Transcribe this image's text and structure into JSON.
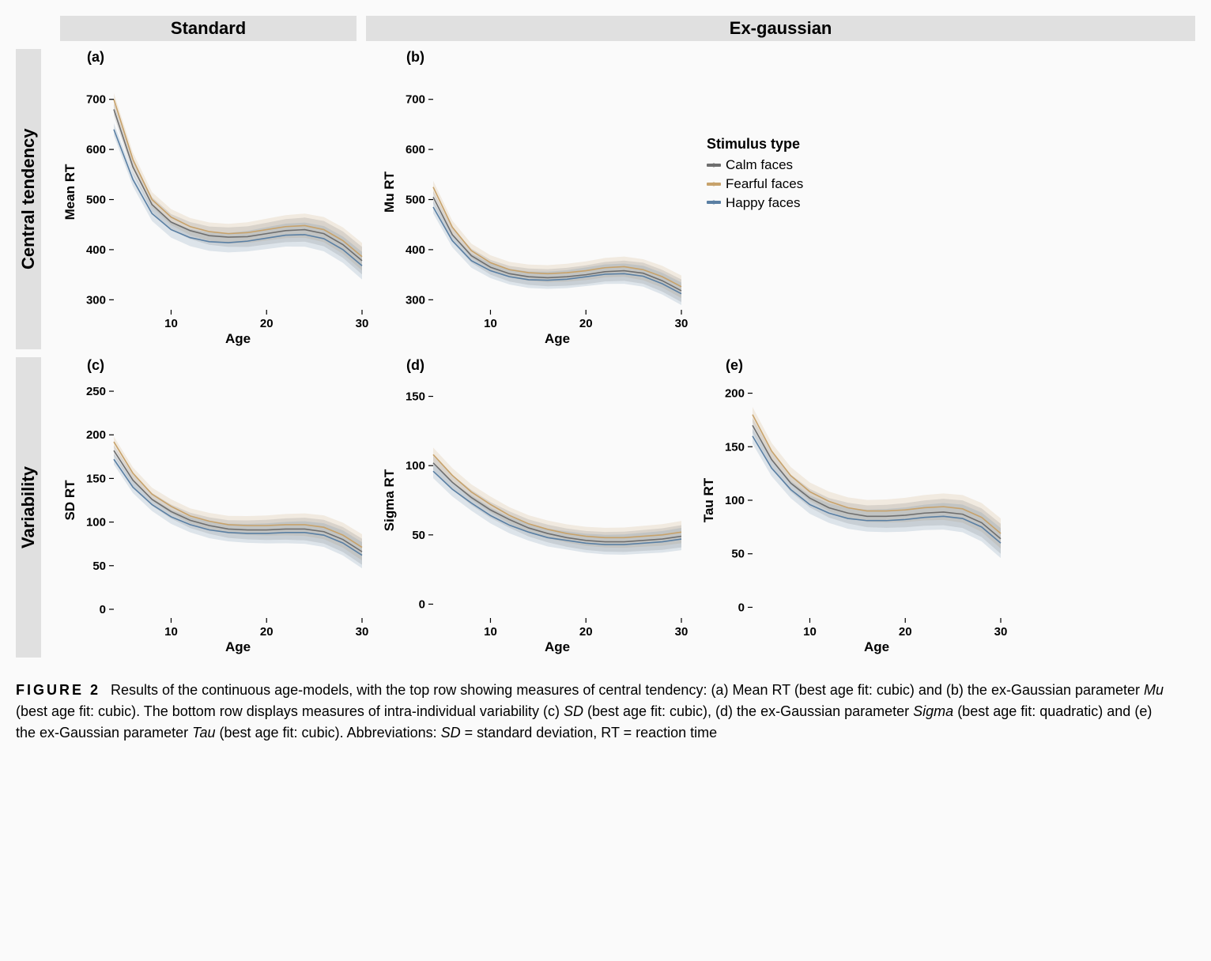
{
  "colors": {
    "calm": "#6e6e6e",
    "fearful": "#c7a26b",
    "happy": "#5a7fa3",
    "ribbon_alpha": 0.18,
    "bg": "#fafafa",
    "header_bg": "#e0e0e0",
    "axis": "#000000"
  },
  "legend": {
    "title": "Stimulus type",
    "items": [
      {
        "key": "calm",
        "label": "Calm faces"
      },
      {
        "key": "fearful",
        "label": "Fearful faces"
      },
      {
        "key": "happy",
        "label": "Happy faces"
      }
    ]
  },
  "column_headers": {
    "standard": "Standard",
    "exgaussian": "Ex-gaussian"
  },
  "row_headers": {
    "central": "Central tendency",
    "variability": "Variability"
  },
  "layout": {
    "top_panel_w": 392,
    "top_panel_h": 380,
    "bottom_panel_w": 392,
    "bottom_panel_h": 380,
    "legend_panel_w": 300,
    "margins": {
      "l": 68,
      "r": 10,
      "t": 32,
      "b": 50
    }
  },
  "x_axis": {
    "label": "Age",
    "min": 4,
    "max": 30,
    "ticks": [
      10,
      20,
      30
    ]
  },
  "panels": {
    "a": {
      "tag": "(a)",
      "ylabel": "Mean RT",
      "ymin": 280,
      "ymax": 750,
      "yticks": [
        300,
        400,
        500,
        600,
        700
      ],
      "series": {
        "calm": [
          [
            4,
            680
          ],
          [
            6,
            565
          ],
          [
            8,
            490
          ],
          [
            10,
            455
          ],
          [
            12,
            438
          ],
          [
            14,
            428
          ],
          [
            16,
            425
          ],
          [
            18,
            426
          ],
          [
            20,
            432
          ],
          [
            22,
            438
          ],
          [
            24,
            440
          ],
          [
            26,
            432
          ],
          [
            28,
            410
          ],
          [
            30,
            378
          ]
        ],
        "fearful": [
          [
            4,
            700
          ],
          [
            6,
            580
          ],
          [
            8,
            500
          ],
          [
            10,
            465
          ],
          [
            12,
            446
          ],
          [
            14,
            436
          ],
          [
            16,
            432
          ],
          [
            18,
            434
          ],
          [
            20,
            440
          ],
          [
            22,
            446
          ],
          [
            24,
            448
          ],
          [
            26,
            440
          ],
          [
            28,
            418
          ],
          [
            30,
            386
          ]
        ],
        "happy": [
          [
            4,
            640
          ],
          [
            6,
            540
          ],
          [
            8,
            472
          ],
          [
            10,
            440
          ],
          [
            12,
            424
          ],
          [
            14,
            416
          ],
          [
            16,
            414
          ],
          [
            18,
            417
          ],
          [
            20,
            423
          ],
          [
            22,
            429
          ],
          [
            24,
            430
          ],
          [
            26,
            422
          ],
          [
            28,
            400
          ],
          [
            30,
            368
          ]
        ]
      },
      "ribbon_w": {
        "start": 25,
        "end": 55
      }
    },
    "b": {
      "tag": "(b)",
      "ylabel": "Mu RT",
      "ymin": 280,
      "ymax": 750,
      "yticks": [
        300,
        400,
        500,
        600,
        700
      ],
      "series": {
        "calm": [
          [
            4,
            505
          ],
          [
            6,
            430
          ],
          [
            8,
            388
          ],
          [
            10,
            365
          ],
          [
            12,
            352
          ],
          [
            14,
            346
          ],
          [
            16,
            344
          ],
          [
            18,
            346
          ],
          [
            20,
            350
          ],
          [
            22,
            356
          ],
          [
            24,
            358
          ],
          [
            26,
            353
          ],
          [
            28,
            338
          ],
          [
            30,
            318
          ]
        ],
        "fearful": [
          [
            4,
            525
          ],
          [
            6,
            445
          ],
          [
            8,
            398
          ],
          [
            10,
            374
          ],
          [
            12,
            360
          ],
          [
            14,
            354
          ],
          [
            16,
            352
          ],
          [
            18,
            354
          ],
          [
            20,
            358
          ],
          [
            22,
            364
          ],
          [
            24,
            366
          ],
          [
            26,
            360
          ],
          [
            28,
            346
          ],
          [
            30,
            326
          ]
        ],
        "happy": [
          [
            4,
            485
          ],
          [
            6,
            418
          ],
          [
            8,
            378
          ],
          [
            10,
            358
          ],
          [
            12,
            346
          ],
          [
            14,
            340
          ],
          [
            16,
            339
          ],
          [
            18,
            341
          ],
          [
            20,
            346
          ],
          [
            22,
            351
          ],
          [
            24,
            352
          ],
          [
            26,
            347
          ],
          [
            28,
            332
          ],
          [
            30,
            312
          ]
        ]
      },
      "ribbon_w": {
        "start": 25,
        "end": 45
      }
    },
    "c": {
      "tag": "(c)",
      "ylabel": "SD RT",
      "ymin": -10,
      "ymax": 260,
      "yticks": [
        0,
        50,
        100,
        150,
        200,
        250
      ],
      "series": {
        "calm": [
          [
            4,
            182
          ],
          [
            6,
            148
          ],
          [
            8,
            126
          ],
          [
            10,
            112
          ],
          [
            12,
            102
          ],
          [
            14,
            96
          ],
          [
            16,
            92
          ],
          [
            18,
            91
          ],
          [
            20,
            91
          ],
          [
            22,
            92
          ],
          [
            24,
            92
          ],
          [
            26,
            89
          ],
          [
            28,
            80
          ],
          [
            30,
            66
          ]
        ],
        "fearful": [
          [
            4,
            192
          ],
          [
            6,
            156
          ],
          [
            8,
            132
          ],
          [
            10,
            118
          ],
          [
            12,
            107
          ],
          [
            14,
            101
          ],
          [
            16,
            97
          ],
          [
            18,
            96
          ],
          [
            20,
            96
          ],
          [
            22,
            97
          ],
          [
            24,
            97
          ],
          [
            26,
            94
          ],
          [
            28,
            85
          ],
          [
            30,
            71
          ]
        ],
        "happy": [
          [
            4,
            172
          ],
          [
            6,
            140
          ],
          [
            8,
            120
          ],
          [
            10,
            106
          ],
          [
            12,
            97
          ],
          [
            14,
            91
          ],
          [
            16,
            88
          ],
          [
            18,
            87
          ],
          [
            20,
            87
          ],
          [
            22,
            88
          ],
          [
            24,
            88
          ],
          [
            26,
            85
          ],
          [
            28,
            76
          ],
          [
            30,
            62
          ]
        ]
      },
      "ribbon_w": {
        "start": 12,
        "end": 30
      }
    },
    "d": {
      "tag": "(d)",
      "ylabel": "Sigma RT",
      "ymin": -10,
      "ymax": 160,
      "yticks": [
        0,
        50,
        100,
        150
      ],
      "series": {
        "calm": [
          [
            4,
            102
          ],
          [
            6,
            88
          ],
          [
            8,
            77
          ],
          [
            10,
            68
          ],
          [
            12,
            61
          ],
          [
            14,
            55
          ],
          [
            16,
            51
          ],
          [
            18,
            48
          ],
          [
            20,
            46
          ],
          [
            22,
            45
          ],
          [
            24,
            45
          ],
          [
            26,
            46
          ],
          [
            28,
            47
          ],
          [
            30,
            49
          ]
        ],
        "fearful": [
          [
            4,
            108
          ],
          [
            6,
            93
          ],
          [
            8,
            81
          ],
          [
            10,
            72
          ],
          [
            12,
            64
          ],
          [
            14,
            58
          ],
          [
            16,
            54
          ],
          [
            18,
            51
          ],
          [
            20,
            49
          ],
          [
            22,
            48
          ],
          [
            24,
            48
          ],
          [
            26,
            49
          ],
          [
            28,
            50
          ],
          [
            30,
            52
          ]
        ],
        "happy": [
          [
            4,
            96
          ],
          [
            6,
            83
          ],
          [
            8,
            73
          ],
          [
            10,
            64
          ],
          [
            12,
            57
          ],
          [
            14,
            52
          ],
          [
            16,
            48
          ],
          [
            18,
            46
          ],
          [
            20,
            44
          ],
          [
            22,
            43
          ],
          [
            24,
            43
          ],
          [
            26,
            44
          ],
          [
            28,
            45
          ],
          [
            30,
            47
          ]
        ]
      },
      "ribbon_w": {
        "start": 10,
        "end": 16
      }
    },
    "e": {
      "tag": "(e)",
      "ylabel": "Tau RT",
      "ymin": -10,
      "ymax": 210,
      "yticks": [
        0,
        50,
        100,
        150,
        200
      ],
      "series": {
        "calm": [
          [
            4,
            170
          ],
          [
            6,
            138
          ],
          [
            8,
            116
          ],
          [
            10,
            102
          ],
          [
            12,
            93
          ],
          [
            14,
            88
          ],
          [
            16,
            85
          ],
          [
            18,
            85
          ],
          [
            20,
            86
          ],
          [
            22,
            88
          ],
          [
            24,
            89
          ],
          [
            26,
            87
          ],
          [
            28,
            79
          ],
          [
            30,
            64
          ]
        ],
        "fearful": [
          [
            4,
            180
          ],
          [
            6,
            146
          ],
          [
            8,
            123
          ],
          [
            10,
            108
          ],
          [
            12,
            99
          ],
          [
            14,
            93
          ],
          [
            16,
            90
          ],
          [
            18,
            90
          ],
          [
            20,
            91
          ],
          [
            22,
            93
          ],
          [
            24,
            94
          ],
          [
            26,
            92
          ],
          [
            28,
            84
          ],
          [
            30,
            69
          ]
        ],
        "happy": [
          [
            4,
            160
          ],
          [
            6,
            130
          ],
          [
            8,
            110
          ],
          [
            10,
            96
          ],
          [
            12,
            88
          ],
          [
            14,
            83
          ],
          [
            16,
            81
          ],
          [
            18,
            81
          ],
          [
            20,
            82
          ],
          [
            22,
            84
          ],
          [
            24,
            85
          ],
          [
            26,
            83
          ],
          [
            28,
            75
          ],
          [
            30,
            60
          ]
        ]
      },
      "ribbon_w": {
        "start": 14,
        "end": 28
      }
    }
  },
  "caption": {
    "label": "FIGURE 2",
    "text_parts": [
      "Results of the continuous age-models, with the top row showing measures of central tendency: (a) Mean RT (best age fit: cubic) and (b) the ex-Gaussian parameter ",
      {
        "i": "Mu"
      },
      " (best age fit: cubic). The bottom row displays measures of intra-individual variability (c) ",
      {
        "i": "SD"
      },
      " (best age fit: cubic), (d) the ex-Gaussian parameter ",
      {
        "i": "Sigma"
      },
      " (best age fit: quadratic) and (e) the ex-Gaussian parameter ",
      {
        "i": "Tau"
      },
      " (best age fit: cubic). Abbreviations: ",
      {
        "i": "SD"
      },
      " = standard deviation, RT = reaction time"
    ]
  }
}
